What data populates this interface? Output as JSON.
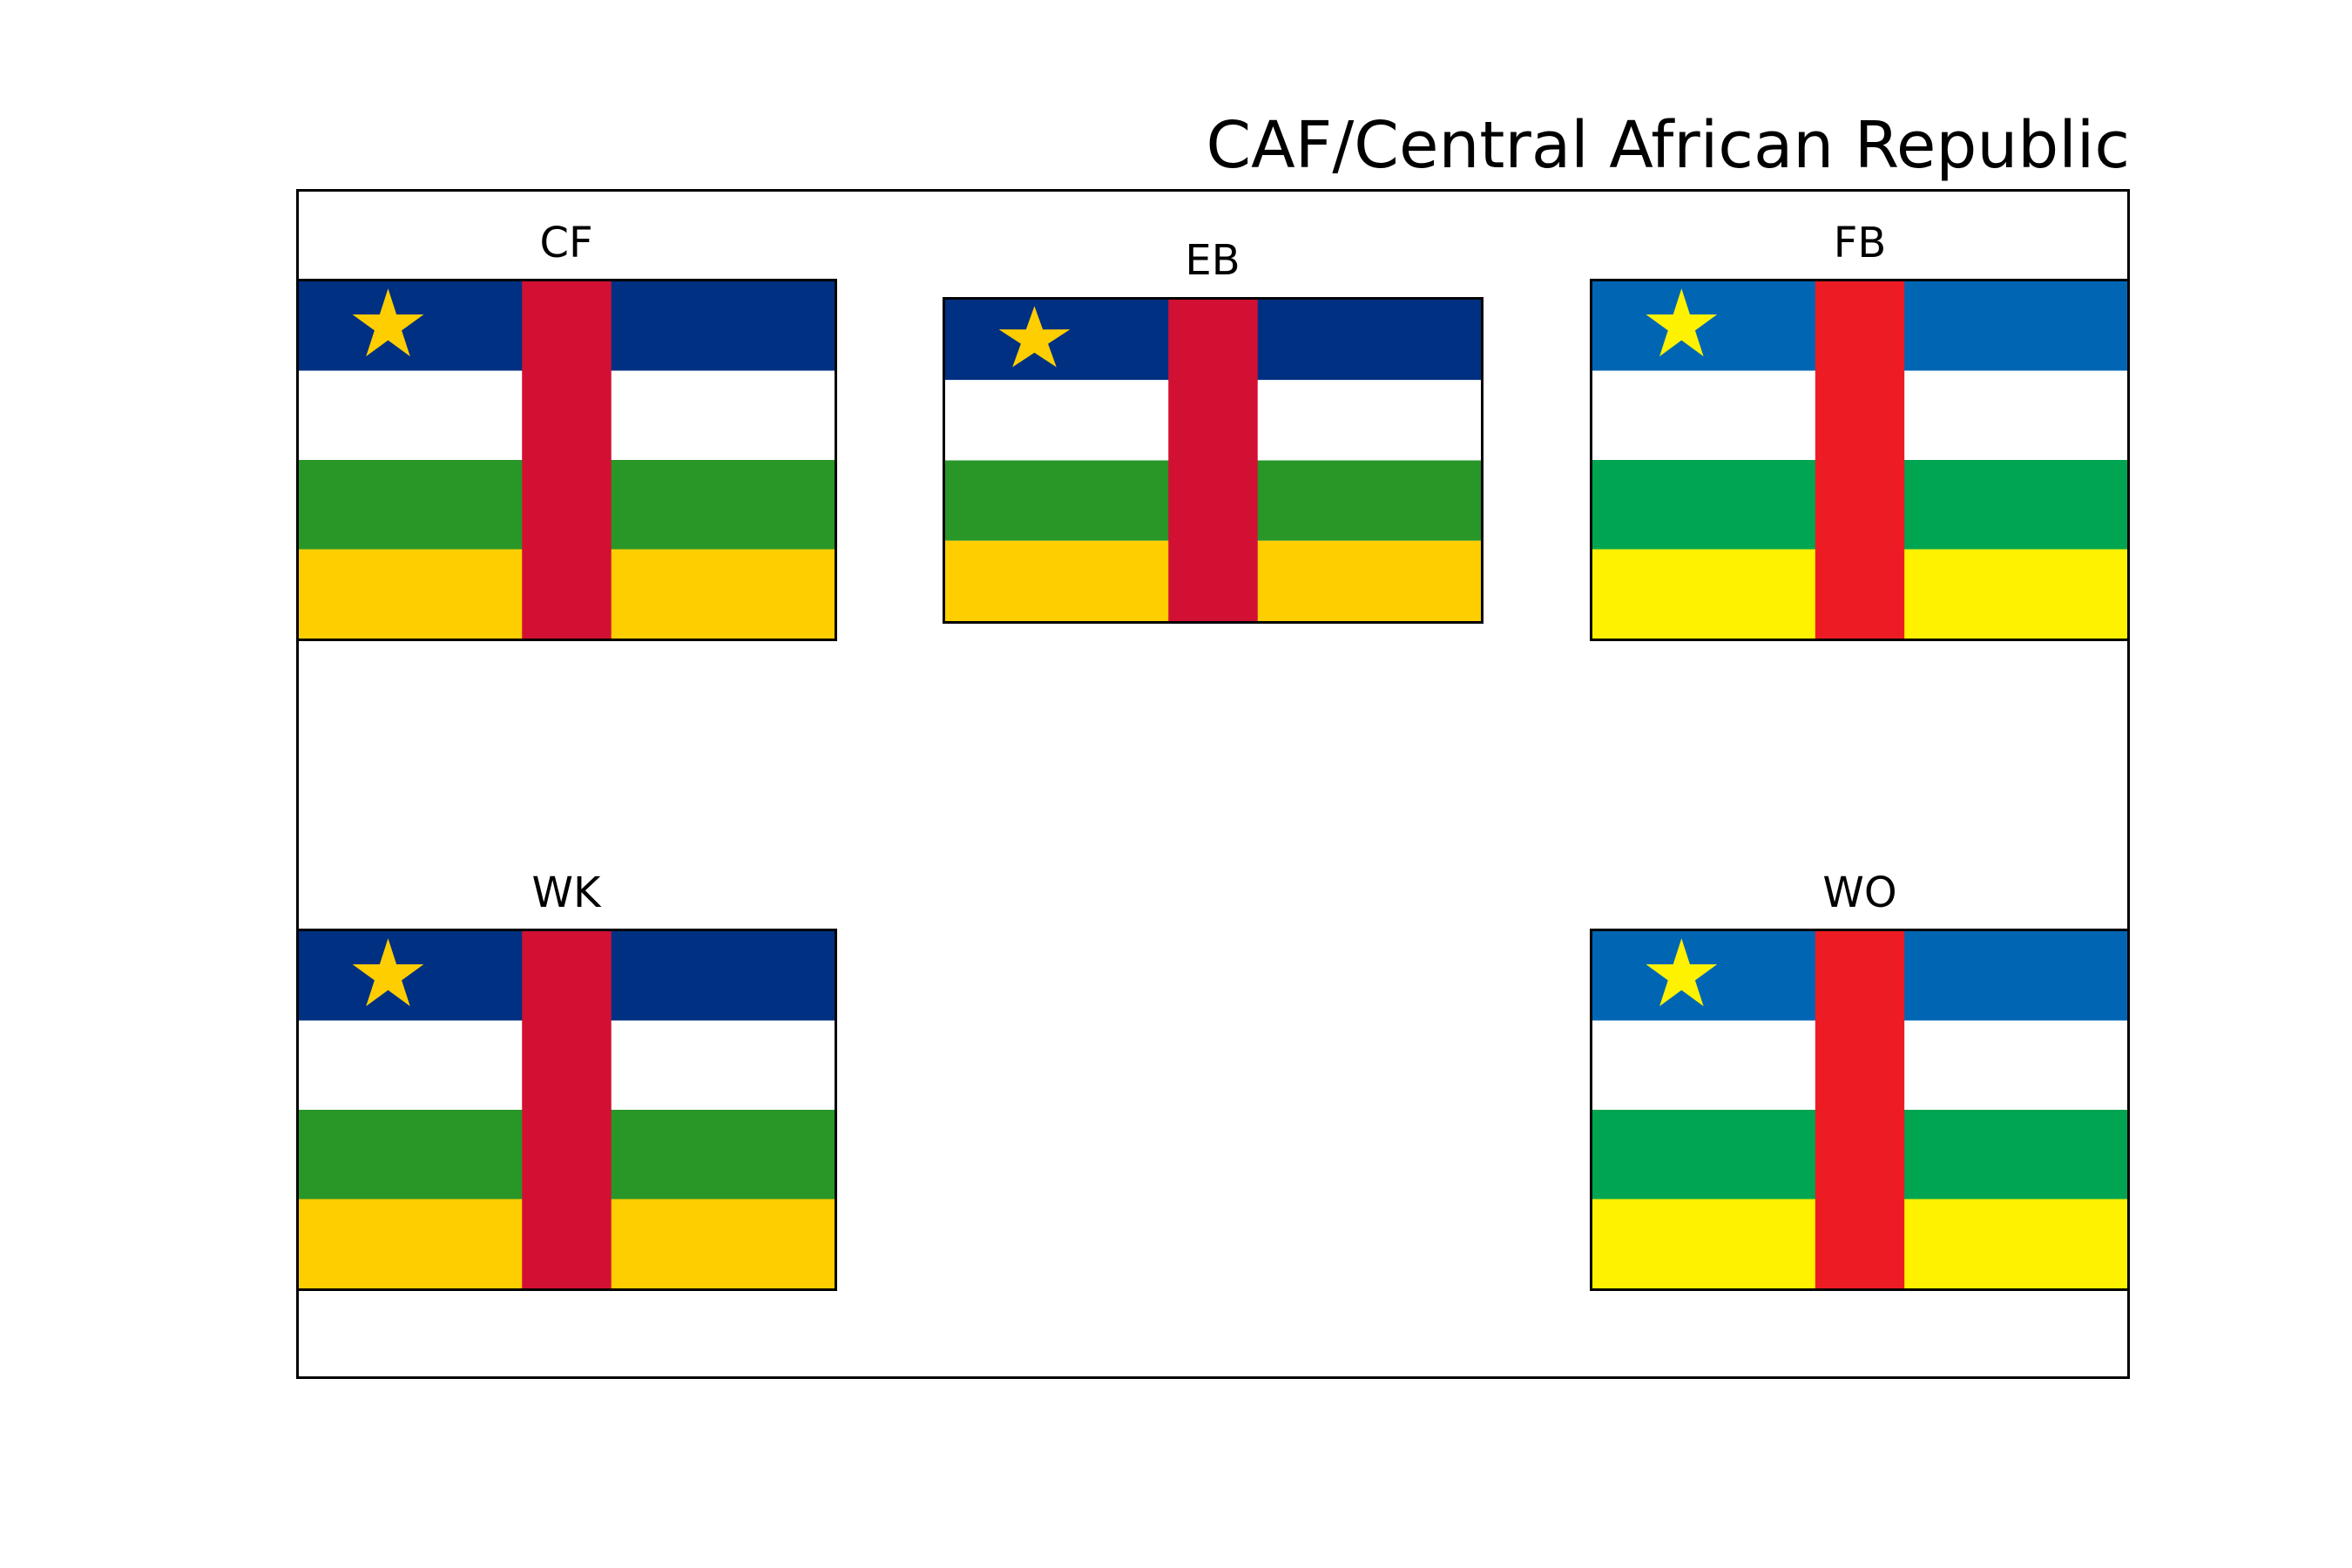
{
  "title": "CAF/Central African Republic",
  "flags": [
    {
      "label": "CF",
      "colors": {
        "blue": "#003082",
        "white": "#FFFFFF",
        "green": "#289728",
        "yellow": "#FFCE00",
        "red": "#D21034",
        "star": "#FFCE00"
      }
    },
    {
      "label": "EB",
      "colors": {
        "blue": "#003082",
        "white": "#FFFFFF",
        "green": "#289728",
        "yellow": "#FFCE00",
        "red": "#D21034",
        "star": "#FFCE00"
      }
    },
    {
      "label": "FB",
      "colors": {
        "blue": "#0066B3",
        "white": "#FFFFFF",
        "green": "#00A551",
        "yellow": "#FFF200",
        "red": "#ED1C24",
        "star": "#FFF200"
      }
    },
    {
      "label": "WK",
      "colors": {
        "blue": "#003082",
        "white": "#FFFFFF",
        "green": "#289728",
        "yellow": "#FFCE00",
        "red": "#D21034",
        "star": "#FFCE00"
      }
    },
    {
      "label": "WO",
      "colors": {
        "blue": "#0066B3",
        "white": "#FFFFFF",
        "green": "#00A551",
        "yellow": "#FFF200",
        "red": "#ED1C24",
        "star": "#FFF200"
      }
    }
  ]
}
